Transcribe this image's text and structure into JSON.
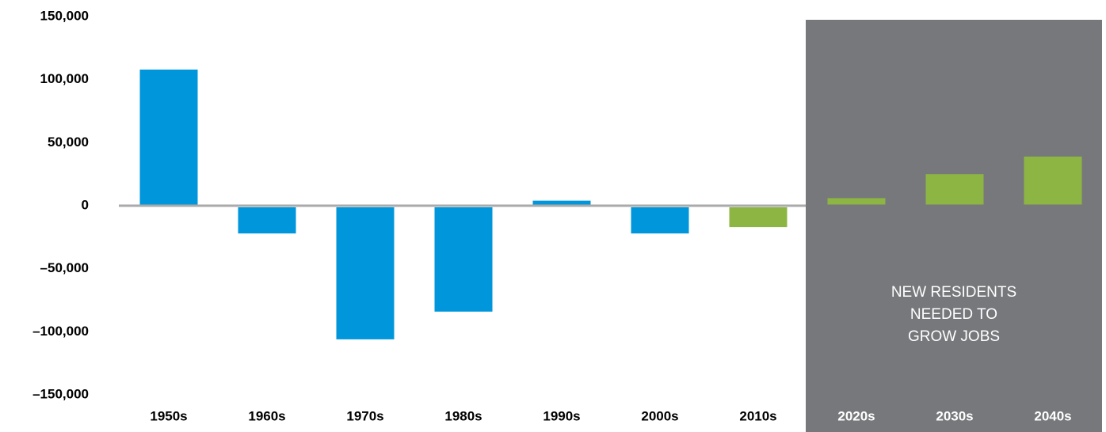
{
  "chart_data": {
    "type": "bar",
    "categories": [
      "1950s",
      "1960s",
      "1970s",
      "1980s",
      "1990s",
      "2000s",
      "2010s",
      "2020s",
      "2030s",
      "2040s"
    ],
    "values": [
      108000,
      -22000,
      -106000,
      -84000,
      4000,
      -22000,
      -17000,
      6000,
      25000,
      39000
    ],
    "colors": [
      "#0096db",
      "#0096db",
      "#0096db",
      "#0096db",
      "#0096db",
      "#0096db",
      "#8db543",
      "#8db543",
      "#8db543",
      "#8db543"
    ],
    "ylim": [
      -150000,
      150000
    ],
    "yticks": [
      {
        "value": 150000,
        "label": "150,000"
      },
      {
        "value": 100000,
        "label": "100,000"
      },
      {
        "value": 50000,
        "label": "50,000"
      },
      0,
      {
        "value": -50000,
        "label": "–50,000"
      },
      {
        "value": -100000,
        "label": "–100,000"
      },
      {
        "value": -150000,
        "label": "–150,000"
      }
    ],
    "shade": {
      "from": "2020s",
      "to": "2040s",
      "color": "#77787b"
    },
    "annotation": [
      "NEW RESIDENTS",
      "NEEDED TO",
      "GROW JOBS"
    ]
  }
}
